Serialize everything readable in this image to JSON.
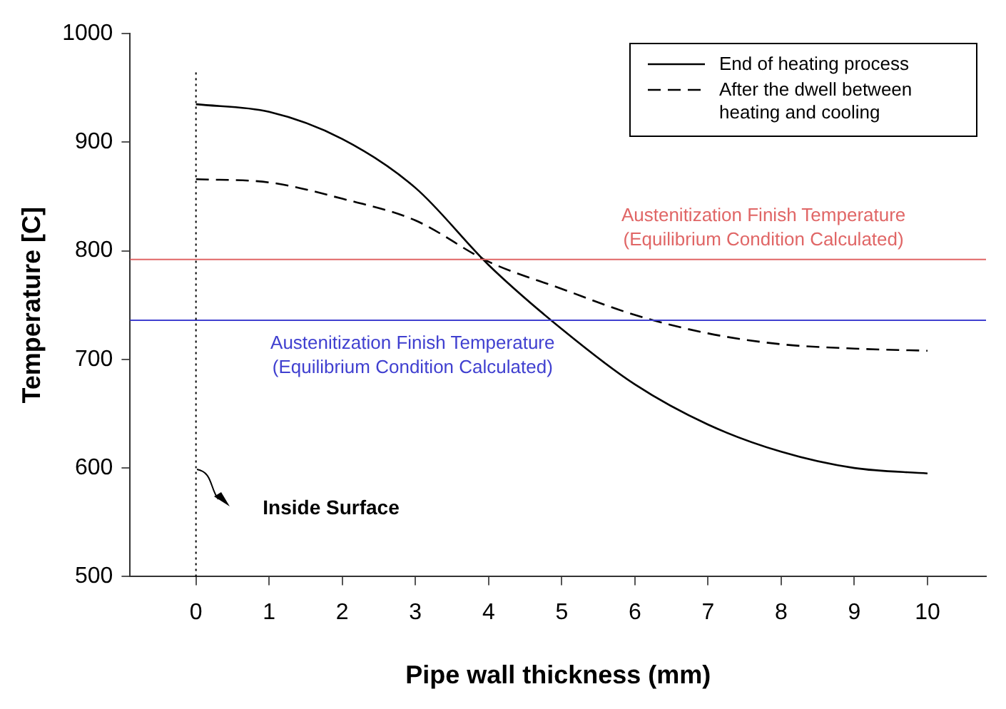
{
  "chart_data": {
    "type": "line",
    "xlabel": "Pipe wall thickness (mm)",
    "ylabel": "Temperature [C]",
    "x": [
      0,
      1,
      2,
      3,
      4,
      5,
      6,
      7,
      8,
      9,
      10
    ],
    "series": [
      {
        "name": "End of heating process",
        "color": "#000000",
        "line_style": "solid",
        "values": [
          935,
          928,
          903,
          858,
          787,
          728,
          677,
          640,
          615,
          600,
          595
        ]
      },
      {
        "name": "After the dwell between heating and cooling",
        "color": "#000000",
        "line_style": "dashed",
        "values": [
          866,
          863,
          848,
          828,
          790,
          765,
          741,
          724,
          714,
          710,
          708
        ]
      }
    ],
    "xlim": [
      -0.9,
      10.8
    ],
    "xticks": [
      0,
      1,
      2,
      3,
      4,
      5,
      6,
      7,
      8,
      9,
      10
    ],
    "ylim": [
      500,
      1000
    ],
    "yticks": [
      500,
      600,
      700,
      800,
      900,
      1000
    ],
    "ref_lines": [
      {
        "axis": "y",
        "value": 792,
        "label": "Austenitization Finish Temperature\n(Equilibrium Condition Calculated)",
        "color": "#e06666"
      },
      {
        "axis": "y",
        "value": 736,
        "label": "Austenitization Finish Temperature\n(Equilibrium Condition Calculated)",
        "color": "#4040d0"
      },
      {
        "axis": "x",
        "value": 0,
        "color": "#000000",
        "line_style": "dotted"
      }
    ],
    "annotations": [
      "Inside Surface"
    ],
    "grid": false,
    "legend": "top right",
    "marker": "none"
  }
}
